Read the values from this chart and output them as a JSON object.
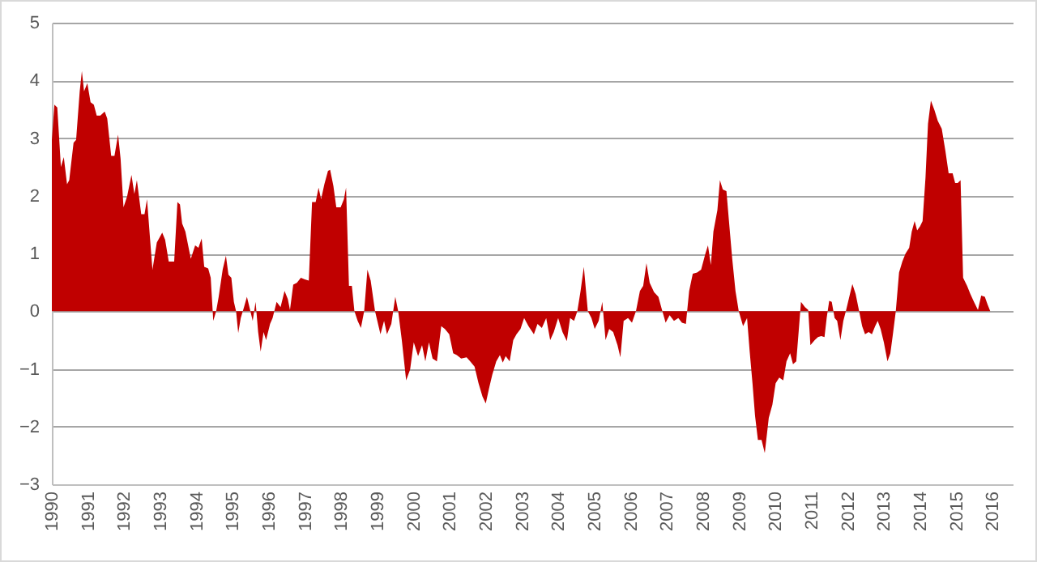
{
  "chart_data": {
    "type": "area",
    "x": [
      1990.0,
      1990.07,
      1990.15,
      1990.25,
      1990.33,
      1990.42,
      1990.48,
      1990.6,
      1990.67,
      1990.77,
      1990.83,
      1990.89,
      1990.98,
      1991.07,
      1991.16,
      1991.24,
      1991.34,
      1991.46,
      1991.53,
      1991.64,
      1991.73,
      1991.83,
      1991.9,
      1991.98,
      1992.08,
      1992.2,
      1992.28,
      1992.35,
      1992.47,
      1992.56,
      1992.63,
      1992.71,
      1992.78,
      1992.9,
      1993.05,
      1993.13,
      1993.23,
      1993.38,
      1993.47,
      1993.54,
      1993.6,
      1993.69,
      1993.84,
      1993.96,
      1994.05,
      1994.14,
      1994.21,
      1994.32,
      1994.39,
      1994.46,
      1994.54,
      1994.61,
      1994.72,
      1994.81,
      1994.88,
      1994.96,
      1995.03,
      1995.09,
      1995.15,
      1995.22,
      1995.31,
      1995.39,
      1995.46,
      1995.55,
      1995.63,
      1995.7,
      1995.77,
      1995.85,
      1995.92,
      1996.03,
      1996.1,
      1996.21,
      1996.32,
      1996.43,
      1996.52,
      1996.58,
      1996.67,
      1996.77,
      1996.88,
      1996.99,
      1997.1,
      1997.19,
      1997.29,
      1997.37,
      1997.44,
      1997.53,
      1997.63,
      1997.69,
      1997.78,
      1997.86,
      1997.98,
      1998.07,
      1998.13,
      1998.21,
      1998.29,
      1998.36,
      1998.45,
      1998.54,
      1998.63,
      1998.72,
      1998.81,
      1998.93,
      1999.08,
      1999.18,
      1999.26,
      1999.38,
      1999.49,
      1999.57,
      1999.67,
      1999.79,
      1999.9,
      2000.0,
      2000.12,
      2000.23,
      2000.32,
      2000.42,
      2000.52,
      2000.64,
      2000.76,
      2000.86,
      2000.98,
      2001.09,
      2001.19,
      2001.31,
      2001.46,
      2001.56,
      2001.68,
      2001.79,
      2001.9,
      2001.99,
      2002.08,
      2002.17,
      2002.28,
      2002.38,
      2002.46,
      2002.54,
      2002.65,
      2002.75,
      2002.84,
      2002.95,
      2003.05,
      2003.17,
      2003.32,
      2003.42,
      2003.54,
      2003.66,
      2003.77,
      2003.87,
      2003.99,
      2004.11,
      2004.23,
      2004.32,
      2004.43,
      2004.52,
      2004.61,
      2004.7,
      2004.81,
      2004.91,
      2005.0,
      2005.11,
      2005.21,
      2005.3,
      2005.4,
      2005.51,
      2005.63,
      2005.71,
      2005.8,
      2005.92,
      2006.03,
      2006.14,
      2006.25,
      2006.34,
      2006.43,
      2006.52,
      2006.64,
      2006.76,
      2006.86,
      2006.96,
      2007.07,
      2007.19,
      2007.31,
      2007.41,
      2007.52,
      2007.61,
      2007.71,
      2007.83,
      2007.94,
      2008.06,
      2008.13,
      2008.21,
      2008.28,
      2008.39,
      2008.46,
      2008.54,
      2008.64,
      2008.71,
      2008.8,
      2008.89,
      2008.98,
      2009.1,
      2009.21,
      2009.28,
      2009.36,
      2009.43,
      2009.51,
      2009.61,
      2009.7,
      2009.81,
      2009.91,
      2010.0,
      2010.1,
      2010.21,
      2010.3,
      2010.4,
      2010.48,
      2010.57,
      2010.63,
      2010.7,
      2010.81,
      2010.9,
      2010.96,
      2011.08,
      2011.17,
      2011.26,
      2011.35,
      2011.41,
      2011.48,
      2011.55,
      2011.63,
      2011.7,
      2011.79,
      2011.87,
      2011.94,
      2012.02,
      2012.12,
      2012.21,
      2012.3,
      2012.39,
      2012.47,
      2012.57,
      2012.66,
      2012.75,
      2012.82,
      2012.9,
      2012.99,
      2013.09,
      2013.17,
      2013.24,
      2013.32,
      2013.41,
      2013.5,
      2013.59,
      2013.69,
      2013.76,
      2013.84,
      2013.91,
      2013.99,
      2014.06,
      2014.14,
      2014.21,
      2014.29,
      2014.39,
      2014.48,
      2014.59,
      2014.69,
      2014.78,
      2014.89,
      2014.96,
      2015.03,
      2015.11,
      2015.18,
      2015.29,
      2015.38,
      2015.48,
      2015.59,
      2015.68,
      2015.78,
      2015.86,
      2015.93
    ],
    "series": [
      {
        "color": "#c00000",
        "values": [
          2.97,
          3.58,
          3.53,
          2.5,
          2.67,
          2.2,
          2.27,
          2.92,
          2.97,
          3.81,
          4.16,
          3.81,
          3.95,
          3.62,
          3.58,
          3.39,
          3.39,
          3.46,
          3.34,
          2.69,
          2.69,
          3.06,
          2.64,
          1.8,
          1.99,
          2.36,
          2.03,
          2.27,
          1.68,
          1.68,
          1.94,
          1.28,
          0.72,
          1.19,
          1.36,
          1.24,
          0.86,
          0.86,
          1.89,
          1.85,
          1.52,
          1.38,
          0.91,
          1.14,
          1.1,
          1.26,
          0.77,
          0.74,
          0.58,
          -0.17,
          0.0,
          0.25,
          0.72,
          0.96,
          0.63,
          0.58,
          0.16,
          0.0,
          -0.38,
          -0.12,
          0.07,
          0.25,
          0.07,
          -0.17,
          0.16,
          -0.36,
          -0.7,
          -0.36,
          -0.5,
          -0.22,
          -0.12,
          0.16,
          0.07,
          0.35,
          0.21,
          0.02,
          0.46,
          0.49,
          0.58,
          0.55,
          0.53,
          1.89,
          1.89,
          2.14,
          1.94,
          2.2,
          2.43,
          2.45,
          2.17,
          1.8,
          1.8,
          1.94,
          2.14,
          0.44,
          0.44,
          0.0,
          -0.17,
          -0.29,
          0.0,
          0.72,
          0.53,
          0.0,
          -0.4,
          -0.17,
          -0.4,
          -0.22,
          0.25,
          0.0,
          -0.5,
          -1.2,
          -1.01,
          -0.54,
          -0.78,
          -0.59,
          -0.87,
          -0.54,
          -0.82,
          -0.87,
          -0.26,
          -0.31,
          -0.4,
          -0.73,
          -0.76,
          -0.82,
          -0.8,
          -0.87,
          -0.96,
          -1.25,
          -1.48,
          -1.6,
          -1.34,
          -1.1,
          -0.87,
          -0.76,
          -0.89,
          -0.78,
          -0.87,
          -0.5,
          -0.4,
          -0.31,
          -0.12,
          -0.26,
          -0.4,
          -0.22,
          -0.29,
          -0.12,
          -0.5,
          -0.36,
          -0.12,
          -0.36,
          -0.52,
          -0.12,
          -0.17,
          0.0,
          0.35,
          0.77,
          0.0,
          -0.12,
          -0.31,
          -0.17,
          0.16,
          -0.5,
          -0.31,
          -0.36,
          -0.59,
          -0.8,
          -0.17,
          -0.12,
          -0.2,
          0.0,
          0.35,
          0.44,
          0.83,
          0.49,
          0.33,
          0.25,
          0.02,
          -0.2,
          -0.07,
          -0.17,
          -0.12,
          -0.2,
          -0.22,
          0.35,
          0.65,
          0.67,
          0.72,
          1.0,
          1.14,
          0.8,
          1.38,
          1.75,
          2.27,
          2.11,
          2.08,
          1.56,
          0.91,
          0.35,
          0.0,
          -0.26,
          -0.12,
          -0.68,
          -1.25,
          -1.81,
          -2.23,
          -2.23,
          -2.46,
          -1.85,
          -1.62,
          -1.25,
          -1.15,
          -1.2,
          -0.87,
          -0.73,
          -0.92,
          -0.87,
          -0.4,
          0.16,
          0.07,
          0.02,
          -0.59,
          -0.5,
          -0.45,
          -0.43,
          -0.45,
          -0.12,
          0.18,
          0.16,
          -0.12,
          -0.17,
          -0.5,
          -0.17,
          0.0,
          0.21,
          0.47,
          0.3,
          0.02,
          -0.26,
          -0.4,
          -0.36,
          -0.4,
          -0.26,
          -0.17,
          -0.31,
          -0.54,
          -0.87,
          -0.73,
          -0.4,
          0.0,
          0.67,
          0.86,
          1.0,
          1.1,
          1.38,
          1.56,
          1.4,
          1.47,
          1.56,
          2.31,
          3.25,
          3.65,
          3.48,
          3.3,
          3.16,
          2.78,
          2.39,
          2.39,
          2.22,
          2.22,
          2.27,
          0.58,
          0.44,
          0.3,
          0.16,
          0.02,
          0.27,
          0.25,
          0.11,
          0.0
        ]
      }
    ],
    "xlim": [
      1990,
      2016.55
    ],
    "xticks": [
      1990,
      1991,
      1992,
      1993,
      1994,
      1995,
      1996,
      1997,
      1998,
      1999,
      2000,
      2001,
      2002,
      2003,
      2004,
      2005,
      2006,
      2007,
      2008,
      2009,
      2010,
      2011,
      2012,
      2013,
      2014,
      2015,
      2016
    ],
    "ylim": [
      -3,
      5
    ],
    "yticks": [
      -3,
      -2,
      -1,
      0,
      1,
      2,
      3,
      4,
      5
    ],
    "grid": "y"
  }
}
